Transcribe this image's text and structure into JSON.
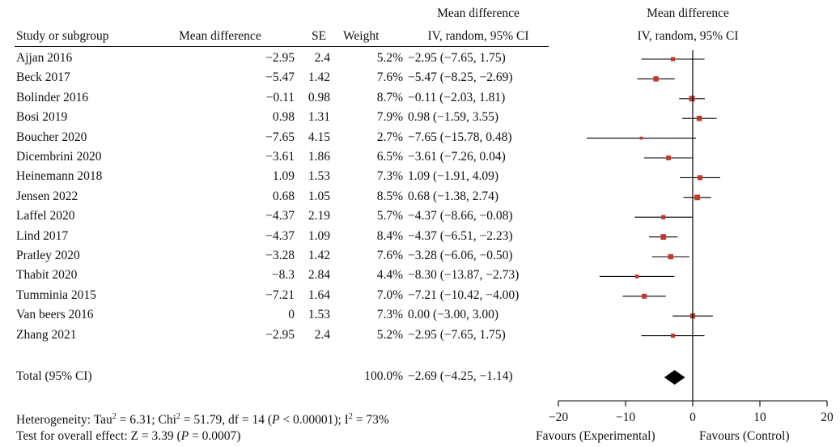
{
  "headers": {
    "study": "Study or subgroup",
    "mean_difference": "Mean difference",
    "se": "SE",
    "weight": "Weight",
    "ci_col_line1": "Mean difference",
    "ci_col_line2": "IV, random, 95% CI",
    "plot_col_line1": "Mean difference",
    "plot_col_line2": "IV, random, 95% CI"
  },
  "total": {
    "label": "Total (95% CI)",
    "weight": "100.0%",
    "ci_text": "−2.69 (−4.25, −1.14)"
  },
  "footer": {
    "heterogeneity": "Heterogeneity: Tau² = 6.31; Chi² = 51.79, df = 14 (P < 0.00001); I² = 73%",
    "overall": "Test for overall effect: Z = 3.39 (P = 0.0007)",
    "favours_left": "Favours (Experimental)",
    "favours_right": "Favours (Control)"
  },
  "colors": {
    "marker": "#c0392b",
    "lines": "#000000",
    "diamond": "#000000"
  },
  "chart_data": {
    "type": "forest",
    "xlim": [
      -20,
      20
    ],
    "ticks": [
      -20,
      -10,
      0,
      10,
      20
    ],
    "tick_labels": [
      "−20",
      "−10",
      "0",
      "10",
      "20"
    ],
    "studies": [
      {
        "name": "Ajjan 2016",
        "md_text": "−2.95",
        "se": "2.4",
        "weight": "5.2%",
        "ci_text": "−2.95 (−7.65, 1.75)",
        "md": -2.95,
        "lo": -7.65,
        "hi": 1.75,
        "w": 5.2
      },
      {
        "name": "Beck 2017",
        "md_text": "−5.47",
        "se": "1.42",
        "weight": "7.6%",
        "ci_text": "−5.47 (−8.25, −2.69)",
        "md": -5.47,
        "lo": -8.25,
        "hi": -2.69,
        "w": 7.6
      },
      {
        "name": "Bolinder 2016",
        "md_text": "−0.11",
        "se": "0.98",
        "weight": "8.7%",
        "ci_text": "−0.11 (−2.03, 1.81)",
        "md": -0.11,
        "lo": -2.03,
        "hi": 1.81,
        "w": 8.7
      },
      {
        "name": "Bosi 2019",
        "md_text": "0.98",
        "se": "1.31",
        "weight": "7.9%",
        "ci_text": "0.98 (−1.59, 3.55)",
        "md": 0.98,
        "lo": -1.59,
        "hi": 3.55,
        "w": 7.9
      },
      {
        "name": "Boucher 2020",
        "md_text": "−7.65",
        "se": "4.15",
        "weight": "2.7%",
        "ci_text": "−7.65 (−15.78, 0.48)",
        "md": -7.65,
        "lo": -15.78,
        "hi": 0.48,
        "w": 2.7
      },
      {
        "name": "Dicembrini 2020",
        "md_text": "−3.61",
        "se": "1.86",
        "weight": "6.5%",
        "ci_text": "−3.61 (−7.26, 0.04)",
        "md": -3.61,
        "lo": -7.26,
        "hi": 0.04,
        "w": 6.5
      },
      {
        "name": "Heinemann 2018",
        "md_text": "1.09",
        "se": "1.53",
        "weight": "7.3%",
        "ci_text": "1.09 (−1.91, 4.09)",
        "md": 1.09,
        "lo": -1.91,
        "hi": 4.09,
        "w": 7.3
      },
      {
        "name": "Jensen 2022",
        "md_text": "0.68",
        "se": "1.05",
        "weight": "8.5%",
        "ci_text": "0.68 (−1.38, 2.74)",
        "md": 0.68,
        "lo": -1.38,
        "hi": 2.74,
        "w": 8.5
      },
      {
        "name": "Laffel 2020",
        "md_text": "−4.37",
        "se": "2.19",
        "weight": "5.7%",
        "ci_text": "−4.37 (−8.66, −0.08)",
        "md": -4.37,
        "lo": -8.66,
        "hi": -0.08,
        "w": 5.7
      },
      {
        "name": "Lind 2017",
        "md_text": "−4.37",
        "se": "1.09",
        "weight": "8.4%",
        "ci_text": "−4.37 (−6.51, −2.23)",
        "md": -4.37,
        "lo": -6.51,
        "hi": -2.23,
        "w": 8.4
      },
      {
        "name": "Pratley 2020",
        "md_text": "−3.28",
        "se": "1.42",
        "weight": "7.6%",
        "ci_text": "−3.28 (−6.06, −0.50)",
        "md": -3.28,
        "lo": -6.06,
        "hi": -0.5,
        "w": 7.6
      },
      {
        "name": "Thabit 2020",
        "md_text": "−8.3",
        "se": "2.84",
        "weight": "4.4%",
        "ci_text": "−8.30 (−13.87, −2.73)",
        "md": -8.3,
        "lo": -13.87,
        "hi": -2.73,
        "w": 4.4
      },
      {
        "name": "Tumminia 2015",
        "md_text": "−7.21",
        "se": "1.64",
        "weight": "7.0%",
        "ci_text": "−7.21 (−10.42, −4.00)",
        "md": -7.21,
        "lo": -10.42,
        "hi": -4.0,
        "w": 7.0
      },
      {
        "name": "Van beers 2016",
        "md_text": "0",
        "se": "1.53",
        "weight": "7.3%",
        "ci_text": "0.00 (−3.00, 3.00)",
        "md": 0.0,
        "lo": -3.0,
        "hi": 3.0,
        "w": 7.3
      },
      {
        "name": "Zhang 2021",
        "md_text": "−2.95",
        "se": "2.4",
        "weight": "5.2%",
        "ci_text": "−2.95 (−7.65, 1.75)",
        "md": -2.95,
        "lo": -7.65,
        "hi": 1.75,
        "w": 5.2
      }
    ],
    "pooled": {
      "md": -2.69,
      "lo": -4.25,
      "hi": -1.14
    }
  }
}
